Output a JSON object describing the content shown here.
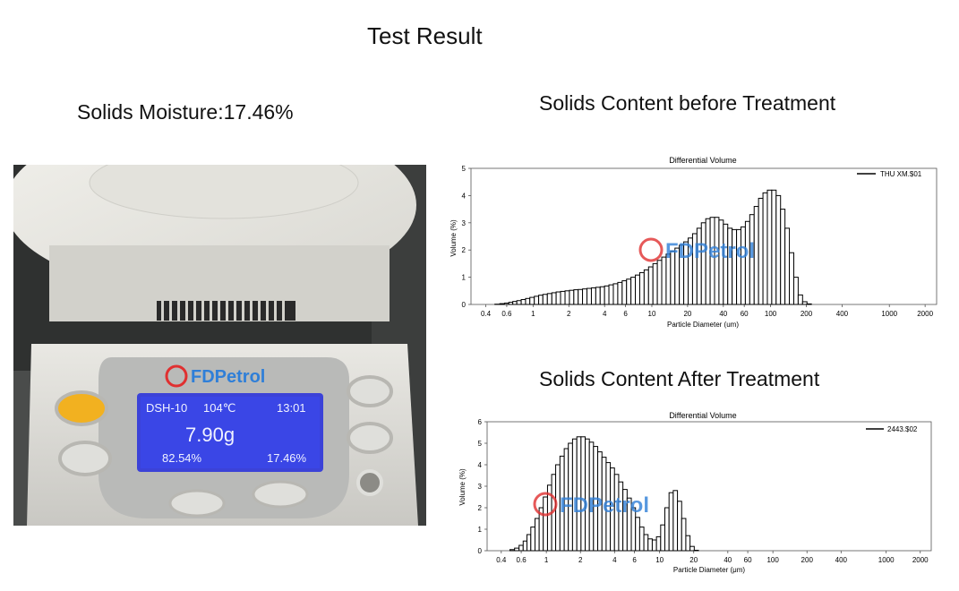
{
  "title": "Test  Result",
  "moisture_label": "Solids Moisture:17.46%",
  "photo": {
    "lcd_model": "DSH-10",
    "lcd_temp": "104℃",
    "lcd_time": "13:01",
    "lcd_weight": "7.90g",
    "lcd_left_pct": "82.54%",
    "lcd_right_pct": "17.46%",
    "watermark": "FDPetrol"
  },
  "charts_headings": [
    "Solids Content before Treatment",
    "Solids Content  After Treatment"
  ],
  "chart_data": [
    {
      "type": "bar",
      "title": "Differential Volume",
      "xlabel": "Particle Diameter (um)",
      "ylabel": "Volume (%)",
      "x_scale": "log",
      "xlim": [
        0.3,
        2500
      ],
      "ylim": [
        0,
        5
      ],
      "x_ticks": [
        "0.4",
        "0.6",
        "1",
        "2",
        "4",
        "6",
        "10",
        "20",
        "40",
        "60",
        "100",
        "200",
        "400",
        "1000",
        "2000"
      ],
      "y_ticks": [
        "0",
        "1",
        "2",
        "3",
        "4",
        "5"
      ],
      "legend": "top-right",
      "series": [
        {
          "name": "THU XM.$01",
          "color": "#000000"
        }
      ],
      "x": [
        0.5,
        0.55,
        0.6,
        0.65,
        0.7,
        0.76,
        0.83,
        0.9,
        0.98,
        1.07,
        1.16,
        1.26,
        1.38,
        1.5,
        1.63,
        1.78,
        1.94,
        2.11,
        2.3,
        2.5,
        2.72,
        2.97,
        3.23,
        3.52,
        3.83,
        4.17,
        4.54,
        4.95,
        5.39,
        5.87,
        6.39,
        6.96,
        7.58,
        8.25,
        8.99,
        9.79,
        10.66,
        11.61,
        12.64,
        13.77,
        15,
        16.33,
        17.78,
        19.37,
        21.1,
        22.98,
        25.02,
        27.25,
        29.68,
        32.32,
        35.2,
        38.34,
        41.75,
        45.47,
        49.52,
        53.93,
        58.74,
        63.97,
        69.67,
        75.87,
        82.63,
        90,
        98,
        106.7,
        116.2,
        126.6,
        137.9,
        150.2,
        163.6,
        178.1,
        194,
        211.3,
        230.1
      ],
      "values": [
        0.01,
        0.03,
        0.05,
        0.08,
        0.11,
        0.14,
        0.18,
        0.22,
        0.26,
        0.3,
        0.34,
        0.37,
        0.4,
        0.43,
        0.46,
        0.48,
        0.5,
        0.52,
        0.54,
        0.55,
        0.57,
        0.59,
        0.61,
        0.63,
        0.65,
        0.68,
        0.72,
        0.76,
        0.81,
        0.87,
        0.93,
        1.0,
        1.08,
        1.17,
        1.27,
        1.38,
        1.5,
        1.62,
        1.74,
        1.85,
        1.96,
        2.07,
        2.18,
        2.3,
        2.44,
        2.6,
        2.8,
        3.0,
        3.15,
        3.2,
        3.2,
        3.1,
        2.95,
        2.8,
        2.75,
        2.75,
        2.85,
        3.05,
        3.3,
        3.6,
        3.9,
        4.1,
        4.2,
        4.2,
        4.0,
        3.5,
        2.8,
        1.9,
        1.0,
        0.35,
        0.1,
        0.02,
        0
      ]
    },
    {
      "type": "bar",
      "title": "Differential Volume",
      "xlabel": "Particle Diameter (μm)",
      "ylabel": "Volume (%)",
      "x_scale": "log",
      "xlim": [
        0.3,
        2500
      ],
      "ylim": [
        0,
        6
      ],
      "x_ticks": [
        "0.4",
        "0.6",
        "1",
        "2",
        "4",
        "6",
        "10",
        "20",
        "40",
        "60",
        "100",
        "200",
        "400",
        "1000",
        "2000"
      ],
      "y_ticks": [
        "0",
        "1",
        "2",
        "3",
        "4",
        "5",
        "6"
      ],
      "legend": "top-right",
      "series": [
        {
          "name": "2443.$02",
          "color": "#000000"
        }
      ],
      "x": [
        0.5,
        0.55,
        0.6,
        0.65,
        0.7,
        0.76,
        0.83,
        0.9,
        0.98,
        1.07,
        1.16,
        1.26,
        1.38,
        1.5,
        1.63,
        1.78,
        1.94,
        2.11,
        2.3,
        2.5,
        2.72,
        2.97,
        3.23,
        3.52,
        3.83,
        4.17,
        4.54,
        4.95,
        5.39,
        5.87,
        6.39,
        6.96,
        7.58,
        8.25,
        8.99,
        9.79,
        10.66,
        11.61,
        12.64,
        13.77,
        15,
        16.33,
        17.78,
        19.37,
        21.1
      ],
      "values": [
        0.05,
        0.12,
        0.25,
        0.45,
        0.75,
        1.1,
        1.5,
        2.0,
        2.5,
        3.05,
        3.55,
        4.0,
        4.4,
        4.75,
        5.0,
        5.2,
        5.3,
        5.3,
        5.2,
        5.05,
        4.85,
        4.6,
        4.35,
        4.1,
        3.85,
        3.55,
        3.2,
        2.85,
        2.45,
        2.0,
        1.55,
        1.1,
        0.75,
        0.55,
        0.5,
        0.65,
        1.2,
        2.0,
        2.7,
        2.8,
        2.3,
        1.5,
        0.7,
        0.2,
        0.02
      ]
    }
  ]
}
